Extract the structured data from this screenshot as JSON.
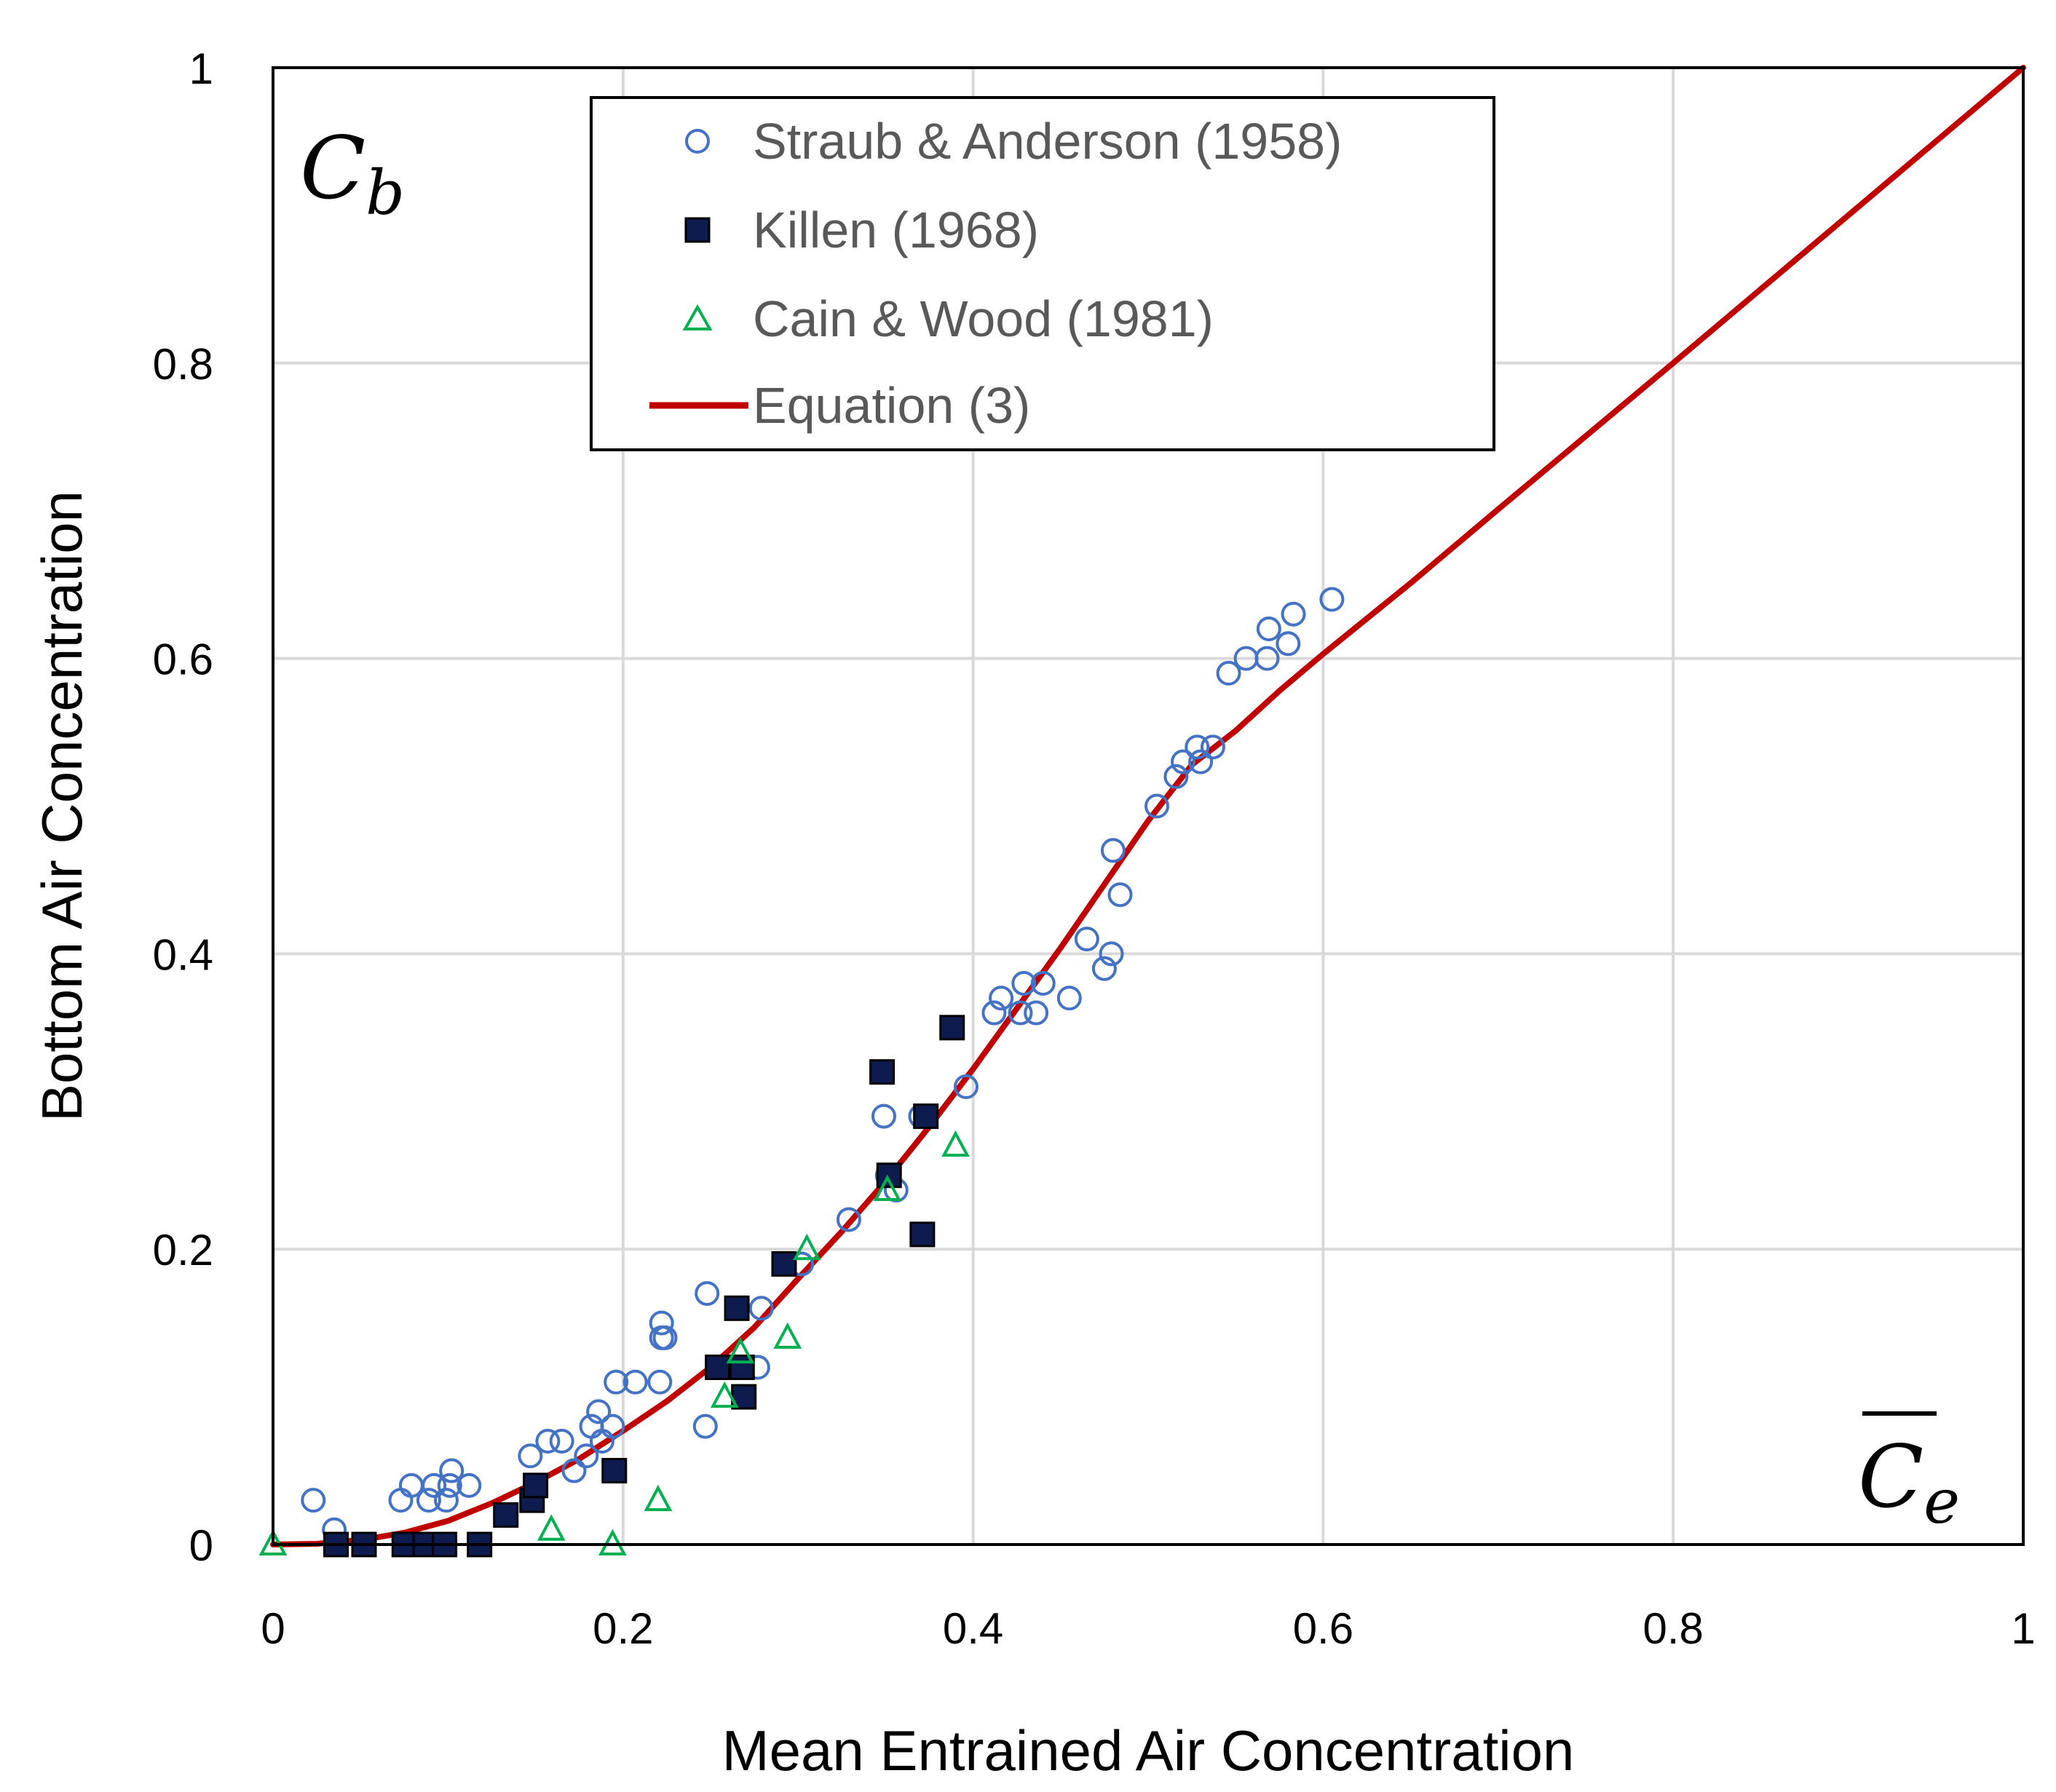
{
  "chart_data": {
    "type": "scatter",
    "title": "",
    "xlabel": "Mean Entrained Air Concentration",
    "ylabel": "Bottom Air Concentration",
    "xlim": [
      0,
      1
    ],
    "ylim": [
      0,
      1
    ],
    "grid": true,
    "x_ticks": [
      "0",
      "0.2",
      "0.4",
      "0.6",
      "0.8",
      "1"
    ],
    "y_ticks": [
      "0",
      "0.2",
      "0.4",
      "0.6",
      "0.8",
      "1"
    ],
    "corner_labels": {
      "y_variable": {
        "base": "C",
        "subscript": "b"
      },
      "x_variable": {
        "base": "C",
        "subscript": "e",
        "overbar": true
      }
    },
    "legend_position": "top",
    "series": [
      {
        "name": "Straub & Anderson (1958)",
        "marker": "open-circle",
        "color": "#4472C4",
        "points": [
          [
            0.023,
            0.03
          ],
          [
            0.035,
            0.01
          ],
          [
            0.073,
            0.03
          ],
          [
            0.079,
            0.04
          ],
          [
            0.089,
            0.03
          ],
          [
            0.092,
            0.04
          ],
          [
            0.099,
            0.03
          ],
          [
            0.101,
            0.04
          ],
          [
            0.102,
            0.05
          ],
          [
            0.112,
            0.04
          ],
          [
            0.147,
            0.06
          ],
          [
            0.157,
            0.07
          ],
          [
            0.165,
            0.07
          ],
          [
            0.172,
            0.05
          ],
          [
            0.179,
            0.06
          ],
          [
            0.182,
            0.08
          ],
          [
            0.186,
            0.09
          ],
          [
            0.188,
            0.07
          ],
          [
            0.194,
            0.08
          ],
          [
            0.196,
            0.11
          ],
          [
            0.207,
            0.11
          ],
          [
            0.221,
            0.11
          ],
          [
            0.222,
            0.14
          ],
          [
            0.222,
            0.15
          ],
          [
            0.224,
            0.14
          ],
          [
            0.247,
            0.08
          ],
          [
            0.248,
            0.17
          ],
          [
            0.268,
            0.12
          ],
          [
            0.277,
            0.12
          ],
          [
            0.279,
            0.16
          ],
          [
            0.302,
            0.19
          ],
          [
            0.329,
            0.22
          ],
          [
            0.349,
            0.29
          ],
          [
            0.351,
            0.25
          ],
          [
            0.356,
            0.24
          ],
          [
            0.37,
            0.29
          ],
          [
            0.396,
            0.31
          ],
          [
            0.412,
            0.36
          ],
          [
            0.416,
            0.37
          ],
          [
            0.427,
            0.36
          ],
          [
            0.429,
            0.38
          ],
          [
            0.436,
            0.36
          ],
          [
            0.44,
            0.38
          ],
          [
            0.455,
            0.37
          ],
          [
            0.465,
            0.41
          ],
          [
            0.475,
            0.39
          ],
          [
            0.479,
            0.4
          ],
          [
            0.48,
            0.47
          ],
          [
            0.484,
            0.44
          ],
          [
            0.505,
            0.5
          ],
          [
            0.516,
            0.52
          ],
          [
            0.52,
            0.53
          ],
          [
            0.528,
            0.54
          ],
          [
            0.53,
            0.53
          ],
          [
            0.537,
            0.54
          ],
          [
            0.546,
            0.59
          ],
          [
            0.556,
            0.6
          ],
          [
            0.568,
            0.6
          ],
          [
            0.569,
            0.62
          ],
          [
            0.58,
            0.61
          ],
          [
            0.583,
            0.63
          ],
          [
            0.605,
            0.64
          ]
        ]
      },
      {
        "name": "Killen (1968)",
        "marker": "filled-square",
        "color": "#0D1B4F",
        "points": [
          [
            0.036,
            0.0
          ],
          [
            0.052,
            0.0
          ],
          [
            0.075,
            0.0
          ],
          [
            0.087,
            0.0
          ],
          [
            0.098,
            0.0
          ],
          [
            0.118,
            0.0
          ],
          [
            0.133,
            0.02
          ],
          [
            0.148,
            0.03
          ],
          [
            0.15,
            0.04
          ],
          [
            0.195,
            0.05
          ],
          [
            0.254,
            0.12
          ],
          [
            0.265,
            0.16
          ],
          [
            0.268,
            0.12
          ],
          [
            0.269,
            0.1
          ],
          [
            0.292,
            0.19
          ],
          [
            0.348,
            0.32
          ],
          [
            0.352,
            0.25
          ],
          [
            0.371,
            0.21
          ],
          [
            0.373,
            0.29
          ],
          [
            0.388,
            0.35
          ]
        ]
      },
      {
        "name": "Cain & Wood (1981)",
        "marker": "open-triangle",
        "color": "#00B050",
        "points": [
          [
            0.0,
            0.0
          ],
          [
            0.159,
            0.01
          ],
          [
            0.194,
            0.0
          ],
          [
            0.22,
            0.03
          ],
          [
            0.258,
            0.1
          ],
          [
            0.267,
            0.13
          ],
          [
            0.294,
            0.14
          ],
          [
            0.305,
            0.2
          ],
          [
            0.351,
            0.24
          ],
          [
            0.39,
            0.27
          ]
        ]
      },
      {
        "name": "Equation (3)",
        "marker": "line",
        "color": "#C00000",
        "points": [
          [
            0.0,
            0.0
          ],
          [
            0.025,
            0.0005
          ],
          [
            0.05,
            0.003
          ],
          [
            0.075,
            0.008
          ],
          [
            0.1,
            0.016
          ],
          [
            0.125,
            0.028
          ],
          [
            0.15,
            0.042
          ],
          [
            0.175,
            0.058
          ],
          [
            0.2,
            0.077
          ],
          [
            0.225,
            0.097
          ],
          [
            0.25,
            0.12
          ],
          [
            0.275,
            0.147
          ],
          [
            0.3,
            0.18
          ],
          [
            0.325,
            0.212
          ],
          [
            0.35,
            0.246
          ],
          [
            0.375,
            0.283
          ],
          [
            0.4,
            0.322
          ],
          [
            0.425,
            0.363
          ],
          [
            0.45,
            0.404
          ],
          [
            0.475,
            0.447
          ],
          [
            0.5,
            0.49
          ],
          [
            0.525,
            0.528
          ],
          [
            0.55,
            0.551
          ],
          [
            0.575,
            0.578
          ],
          [
            0.6,
            0.603
          ],
          [
            0.65,
            0.651
          ],
          [
            0.7,
            0.701
          ],
          [
            0.8,
            0.8
          ],
          [
            0.9,
            0.9
          ],
          [
            1.0,
            1.0
          ]
        ]
      }
    ]
  }
}
